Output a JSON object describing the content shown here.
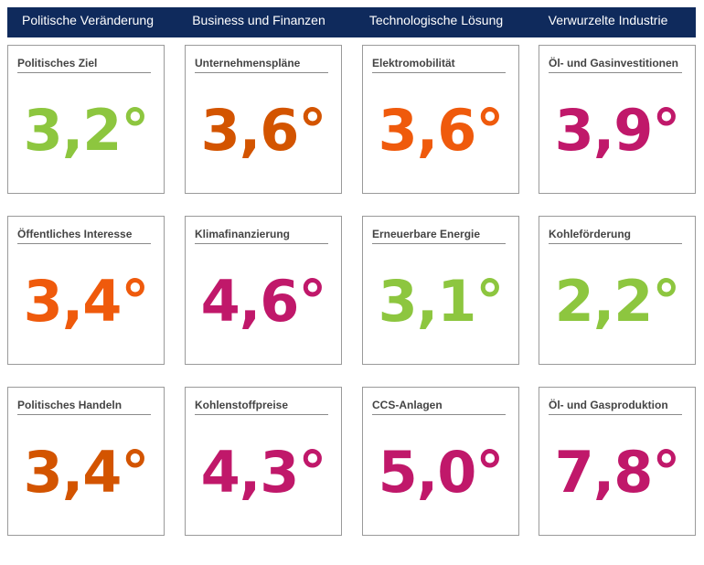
{
  "chart_data": {
    "type": "table",
    "title": "",
    "unit": "°",
    "columns": [
      "Politische Veränderung",
      "Business und Finanzen",
      "Technologische Lösung",
      "Verwurzelte Industrie"
    ],
    "rows": [
      [
        {
          "label": "Politisches Ziel",
          "value": "3,2°",
          "color": "#8dc63f"
        },
        {
          "label": "Unternehmenspläne",
          "value": "3,6°",
          "color": "#d35400"
        },
        {
          "label": "Elektromobilität",
          "value": "3,6°",
          "color": "#ef5a0c"
        },
        {
          "label": "Öl- und Gasinvestitionen",
          "value": "3,9°",
          "color": "#c0186a"
        }
      ],
      [
        {
          "label": "Öffentliches Interesse",
          "value": "3,4°",
          "color": "#ef5a0c"
        },
        {
          "label": "Klimafinanzierung",
          "value": "4,6°",
          "color": "#c0186a"
        },
        {
          "label": "Erneuerbare Energie",
          "value": "3,1°",
          "color": "#8dc63f"
        },
        {
          "label": "Kohleförderung",
          "value": "2,2°",
          "color": "#8dc63f"
        }
      ],
      [
        {
          "label": "Politisches Handeln",
          "value": "3,4°",
          "color": "#d35400"
        },
        {
          "label": "Kohlenstoffpreise",
          "value": "4,3°",
          "color": "#c0186a"
        },
        {
          "label": "CCS-Anlagen",
          "value": "5,0°",
          "color": "#c0186a"
        },
        {
          "label": "Öl- und Gasproduktion",
          "value": "7,8°",
          "color": "#c0186a"
        }
      ]
    ]
  },
  "colors": {
    "header_bg": "#0f2a5c",
    "header_text": "#ffffff",
    "green": "#8dc63f",
    "dark_orange": "#d35400",
    "orange": "#ef5a0c",
    "magenta": "#c0186a"
  }
}
